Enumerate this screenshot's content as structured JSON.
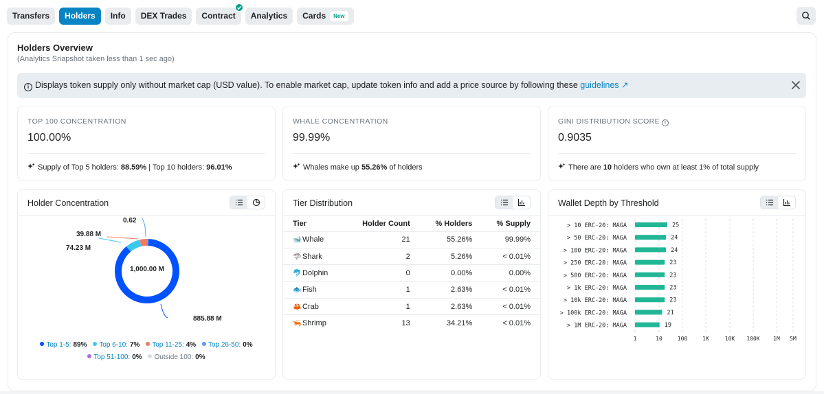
{
  "tabs": [
    {
      "label": "Transfers",
      "active": false
    },
    {
      "label": "Holders",
      "active": true
    },
    {
      "label": "Info",
      "active": false
    },
    {
      "label": "DEX Trades",
      "active": false
    },
    {
      "label": "Contract",
      "active": false,
      "verified": true
    },
    {
      "label": "Analytics",
      "active": false
    },
    {
      "label": "Cards",
      "active": false,
      "badge": "New"
    }
  ],
  "overview": {
    "title": "Holders Overview",
    "subtitle": "(Analytics Snapshot taken less than 1 sec ago)"
  },
  "alert": {
    "text": "Displays token supply only without market cap (USD value). To enable market cap, update token info and add a price source by following these ",
    "link": "guidelines",
    "link_arrow": "↗"
  },
  "metrics": {
    "top100": {
      "label": "TOP 100 CONCENTRATION",
      "value": "100.00%",
      "foot_pre": "Supply of Top 5 holders: ",
      "foot_b1": "88.59%",
      "foot_mid": " | Top 10 holders: ",
      "foot_b2": "96.01%"
    },
    "whale": {
      "label": "WHALE CONCENTRATION",
      "value": "99.99%",
      "foot_pre": "Whales make up ",
      "foot_b1": "55.26%",
      "foot_post": " of holders"
    },
    "gini": {
      "label": "GINI DISTRIBUTION SCORE",
      "value": "0.9035",
      "foot_pre": "There are ",
      "foot_b1": "10",
      "foot_post": " holders who own at least 1% of total supply"
    }
  },
  "holder_concentration": {
    "title": "Holder Concentration",
    "center_label": "1,000.00 M",
    "labels": [
      "885.88 M",
      "74.23 M",
      "39.88 M",
      "0.62"
    ],
    "legend": [
      {
        "name": "Top 1-5:",
        "value": "89%",
        "color": "#0052ff"
      },
      {
        "name": "Top 6-10:",
        "value": "7%",
        "color": "#3cc8ee"
      },
      {
        "name": "Top 11-25:",
        "value": "4%",
        "color": "#f07c64"
      },
      {
        "name": "Top 26-50:",
        "value": "0%",
        "color": "#5b9cf6"
      },
      {
        "name": "Top 51-100:",
        "value": "0%",
        "color": "#a56ee6"
      },
      {
        "name": "Outside 100:",
        "value": "0%",
        "color": "#d9dbde"
      }
    ]
  },
  "tier_distribution": {
    "title": "Tier Distribution",
    "headers": [
      "Tier",
      "Holder Count",
      "% Holders",
      "% Supply"
    ],
    "rows": [
      {
        "icon": "whale-icon",
        "glyph": "🐋",
        "tier": "Whale",
        "count": "21",
        "holders": "55.26%",
        "supply": "99.99%"
      },
      {
        "icon": "shark-icon",
        "glyph": "🦈",
        "tier": "Shark",
        "count": "2",
        "holders": "5.26%",
        "supply": "< 0.01%"
      },
      {
        "icon": "dolphin-icon",
        "glyph": "🐬",
        "tier": "Dolphin",
        "count": "0",
        "holders": "0.00%",
        "supply": "0.00%"
      },
      {
        "icon": "fish-icon",
        "glyph": "🐟",
        "tier": "Fish",
        "count": "1",
        "holders": "2.63%",
        "supply": "< 0.01%"
      },
      {
        "icon": "crab-icon",
        "glyph": "🦀",
        "tier": "Crab",
        "count": "1",
        "holders": "2.63%",
        "supply": "< 0.01%"
      },
      {
        "icon": "shrimp-icon",
        "glyph": "🦐",
        "tier": "Shrimp",
        "count": "13",
        "holders": "34.21%",
        "supply": "< 0.01%"
      }
    ]
  },
  "wallet_depth": {
    "title": "Wallet Depth by Threshold"
  },
  "chart_data": {
    "type": "bar",
    "orientation": "horizontal",
    "title": "Wallet Depth by Threshold",
    "categories": [
      "> 10 ERC-20: MAGA",
      "> 50 ERC-20: MAGA",
      "> 100 ERC-20: MAGA",
      "> 250 ERC-20: MAGA",
      "> 500 ERC-20: MAGA",
      "> 1k ERC-20: MAGA",
      "> 10k ERC-20: MAGA",
      "> 100k ERC-20: MAGA",
      "> 1M ERC-20: MAGA"
    ],
    "values": [
      25,
      24,
      24,
      23,
      23,
      23,
      23,
      21,
      19
    ],
    "x_ticks": [
      "1",
      "10",
      "100",
      "1K",
      "10K",
      "100K",
      "1M",
      "5M"
    ],
    "x_scale": "log",
    "xlim": [
      1,
      5000000
    ],
    "bar_color": "#21b796",
    "grid": true
  },
  "donut_data": {
    "type": "pie",
    "slices": [
      {
        "name": "Top 1-5",
        "value": 885.88
      },
      {
        "name": "Top 6-10",
        "value": 74.23
      },
      {
        "name": "Top 11-25",
        "value": 39.88
      },
      {
        "name": "Top 26-50",
        "value": 0.62
      }
    ],
    "total": 1000.0
  }
}
